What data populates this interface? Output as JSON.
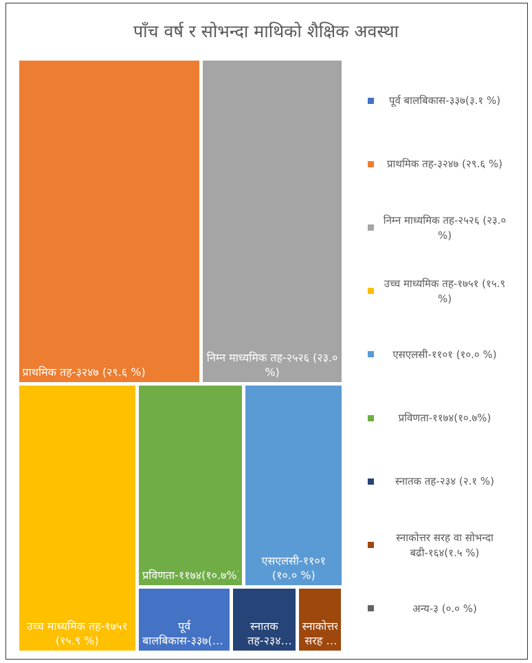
{
  "chart_data": {
    "type": "treemap",
    "title": "पाँच वर्ष र सोभन्दा माथिको शैक्षिक अवस्था",
    "categories": [
      "पूर्व बालबिकास-३३७(३.१ %)",
      "प्राथमिक तह-३२४७ (२९.६ %)",
      "निम्न माध्यमिक तह-२५२६ (२३.० %)",
      "उच्च माध्यमिक तह-१७५१ (१५.९ %)",
      "एसएलसी-११०१ (१०.० %)",
      "प्रविणता-११७४(१०.७%)",
      "स्नातक तह-२३४ (२.१ %)",
      "स्नाकोत्तर सरह वा सोभन्दा बढी-१६४(१.५ %)",
      "अन्य-३ (०.० %)"
    ],
    "values": [
      337,
      3247,
      2526,
      1751,
      1101,
      1174,
      234,
      164,
      3
    ],
    "colors": [
      "#4472c4",
      "#ed7d31",
      "#a5a5a5",
      "#ffc000",
      "#5b9bd5",
      "#70ad47",
      "#264478",
      "#9e480e",
      "#636363"
    ],
    "legend": "right"
  }
}
